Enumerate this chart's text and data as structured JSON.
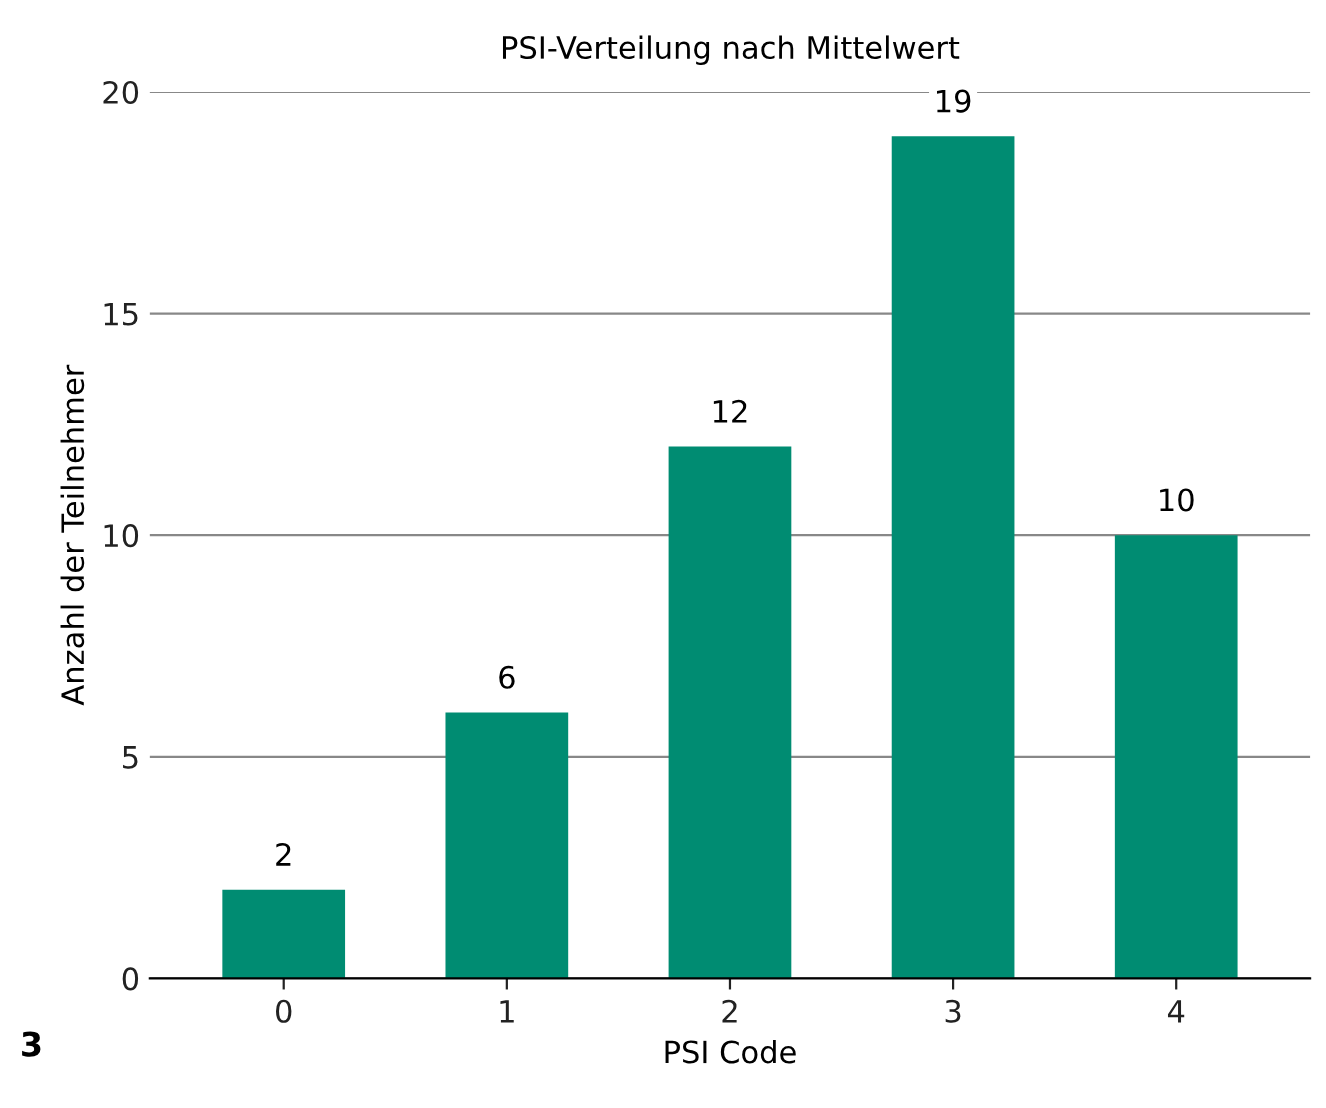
{
  "chart_data": {
    "type": "bar",
    "title": "PSI-Verteilung nach Mittelwert",
    "xlabel": "PSI Code",
    "ylabel": "Anzahl der Teilnehmer",
    "categories": [
      "0",
      "1",
      "2",
      "3",
      "4"
    ],
    "values": [
      2,
      6,
      12,
      19,
      10
    ],
    "color": "#008c72",
    "ylim": [
      0,
      20
    ],
    "yticks": [
      0,
      5,
      10,
      15,
      20
    ],
    "grid": "y",
    "data_labels": true,
    "legend": false,
    "annotations": [
      "3"
    ]
  }
}
